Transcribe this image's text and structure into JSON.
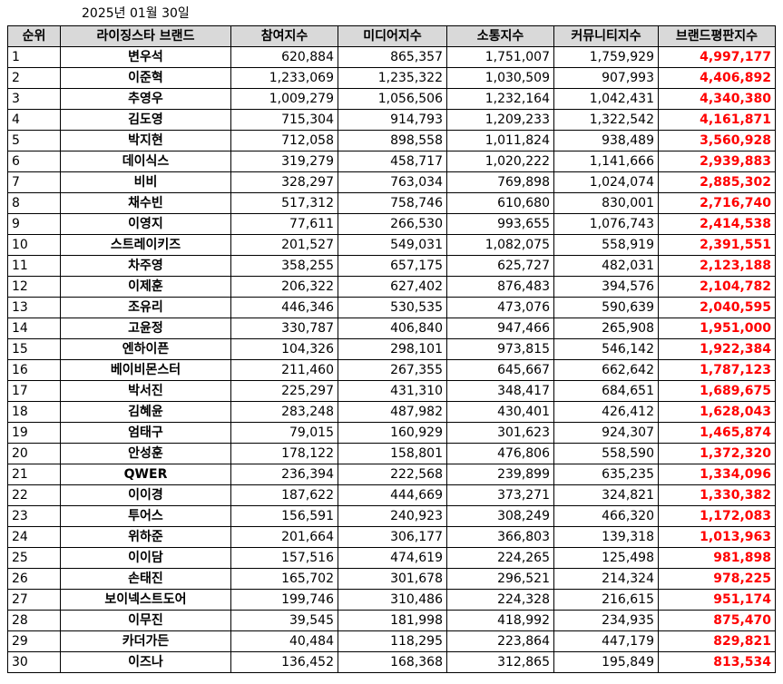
{
  "date": "2025년 01월 30일",
  "chart_data": {
    "type": "table",
    "columns": [
      "순위",
      "라이징스타 브랜드",
      "참여지수",
      "미디어지수",
      "소통지수",
      "커뮤니티지수",
      "브랜드평판지수"
    ],
    "rows": [
      [
        "1",
        "변우석",
        "620,884",
        "865,357",
        "1,751,007",
        "1,759,929",
        "4,997,177"
      ],
      [
        "2",
        "이준혁",
        "1,233,069",
        "1,235,322",
        "1,030,509",
        "907,993",
        "4,406,892"
      ],
      [
        "3",
        "추영우",
        "1,009,279",
        "1,056,506",
        "1,232,164",
        "1,042,431",
        "4,340,380"
      ],
      [
        "4",
        "김도영",
        "715,304",
        "914,793",
        "1,209,233",
        "1,322,542",
        "4,161,871"
      ],
      [
        "5",
        "박지현",
        "712,058",
        "898,558",
        "1,011,824",
        "938,489",
        "3,560,928"
      ],
      [
        "6",
        "데이식스",
        "319,279",
        "458,717",
        "1,020,222",
        "1,141,666",
        "2,939,883"
      ],
      [
        "7",
        "비비",
        "328,297",
        "763,034",
        "769,898",
        "1,024,074",
        "2,885,302"
      ],
      [
        "8",
        "채수빈",
        "517,312",
        "758,746",
        "610,680",
        "830,001",
        "2,716,740"
      ],
      [
        "9",
        "이영지",
        "77,611",
        "266,530",
        "993,655",
        "1,076,743",
        "2,414,538"
      ],
      [
        "10",
        "스트레이키즈",
        "201,527",
        "549,031",
        "1,082,075",
        "558,919",
        "2,391,551"
      ],
      [
        "11",
        "차주영",
        "358,255",
        "657,175",
        "625,727",
        "482,031",
        "2,123,188"
      ],
      [
        "12",
        "이제훈",
        "206,322",
        "627,402",
        "876,483",
        "394,576",
        "2,104,782"
      ],
      [
        "13",
        "조유리",
        "446,346",
        "530,535",
        "473,076",
        "590,639",
        "2,040,595"
      ],
      [
        "14",
        "고윤정",
        "330,787",
        "406,840",
        "947,466",
        "265,908",
        "1,951,000"
      ],
      [
        "15",
        "엔하이픈",
        "104,326",
        "298,101",
        "973,815",
        "546,142",
        "1,922,384"
      ],
      [
        "16",
        "베이비몬스터",
        "211,460",
        "267,355",
        "645,667",
        "662,642",
        "1,787,123"
      ],
      [
        "17",
        "박서진",
        "225,297",
        "431,310",
        "348,417",
        "684,651",
        "1,689,675"
      ],
      [
        "18",
        "김혜윤",
        "283,248",
        "487,982",
        "430,401",
        "426,412",
        "1,628,043"
      ],
      [
        "19",
        "엄태구",
        "79,015",
        "160,929",
        "301,623",
        "924,307",
        "1,465,874"
      ],
      [
        "20",
        "안성훈",
        "178,122",
        "158,801",
        "476,806",
        "558,590",
        "1,372,320"
      ],
      [
        "21",
        "QWER",
        "236,394",
        "222,568",
        "239,899",
        "635,235",
        "1,334,096"
      ],
      [
        "22",
        "이이경",
        "187,622",
        "444,669",
        "373,271",
        "324,821",
        "1,330,382"
      ],
      [
        "23",
        "투어스",
        "156,591",
        "240,923",
        "308,249",
        "466,320",
        "1,172,083"
      ],
      [
        "24",
        "위하준",
        "201,664",
        "306,177",
        "366,803",
        "139,318",
        "1,013,963"
      ],
      [
        "25",
        "이이담",
        "157,516",
        "474,619",
        "224,265",
        "125,498",
        "981,898"
      ],
      [
        "26",
        "손태진",
        "165,702",
        "301,678",
        "296,521",
        "214,324",
        "978,225"
      ],
      [
        "27",
        "보이넥스트도어",
        "199,746",
        "310,486",
        "224,328",
        "216,615",
        "951,174"
      ],
      [
        "28",
        "이무진",
        "39,545",
        "181,998",
        "418,992",
        "234,935",
        "875,470"
      ],
      [
        "29",
        "카더가든",
        "40,484",
        "118,295",
        "223,864",
        "447,179",
        "829,821"
      ],
      [
        "30",
        "이즈나",
        "136,452",
        "168,368",
        "312,865",
        "195,849",
        "813,534"
      ]
    ],
    "colors": {
      "header_bg": "#d9d9d9",
      "brand_index_text": "#ff0000",
      "border": "#000000"
    }
  }
}
